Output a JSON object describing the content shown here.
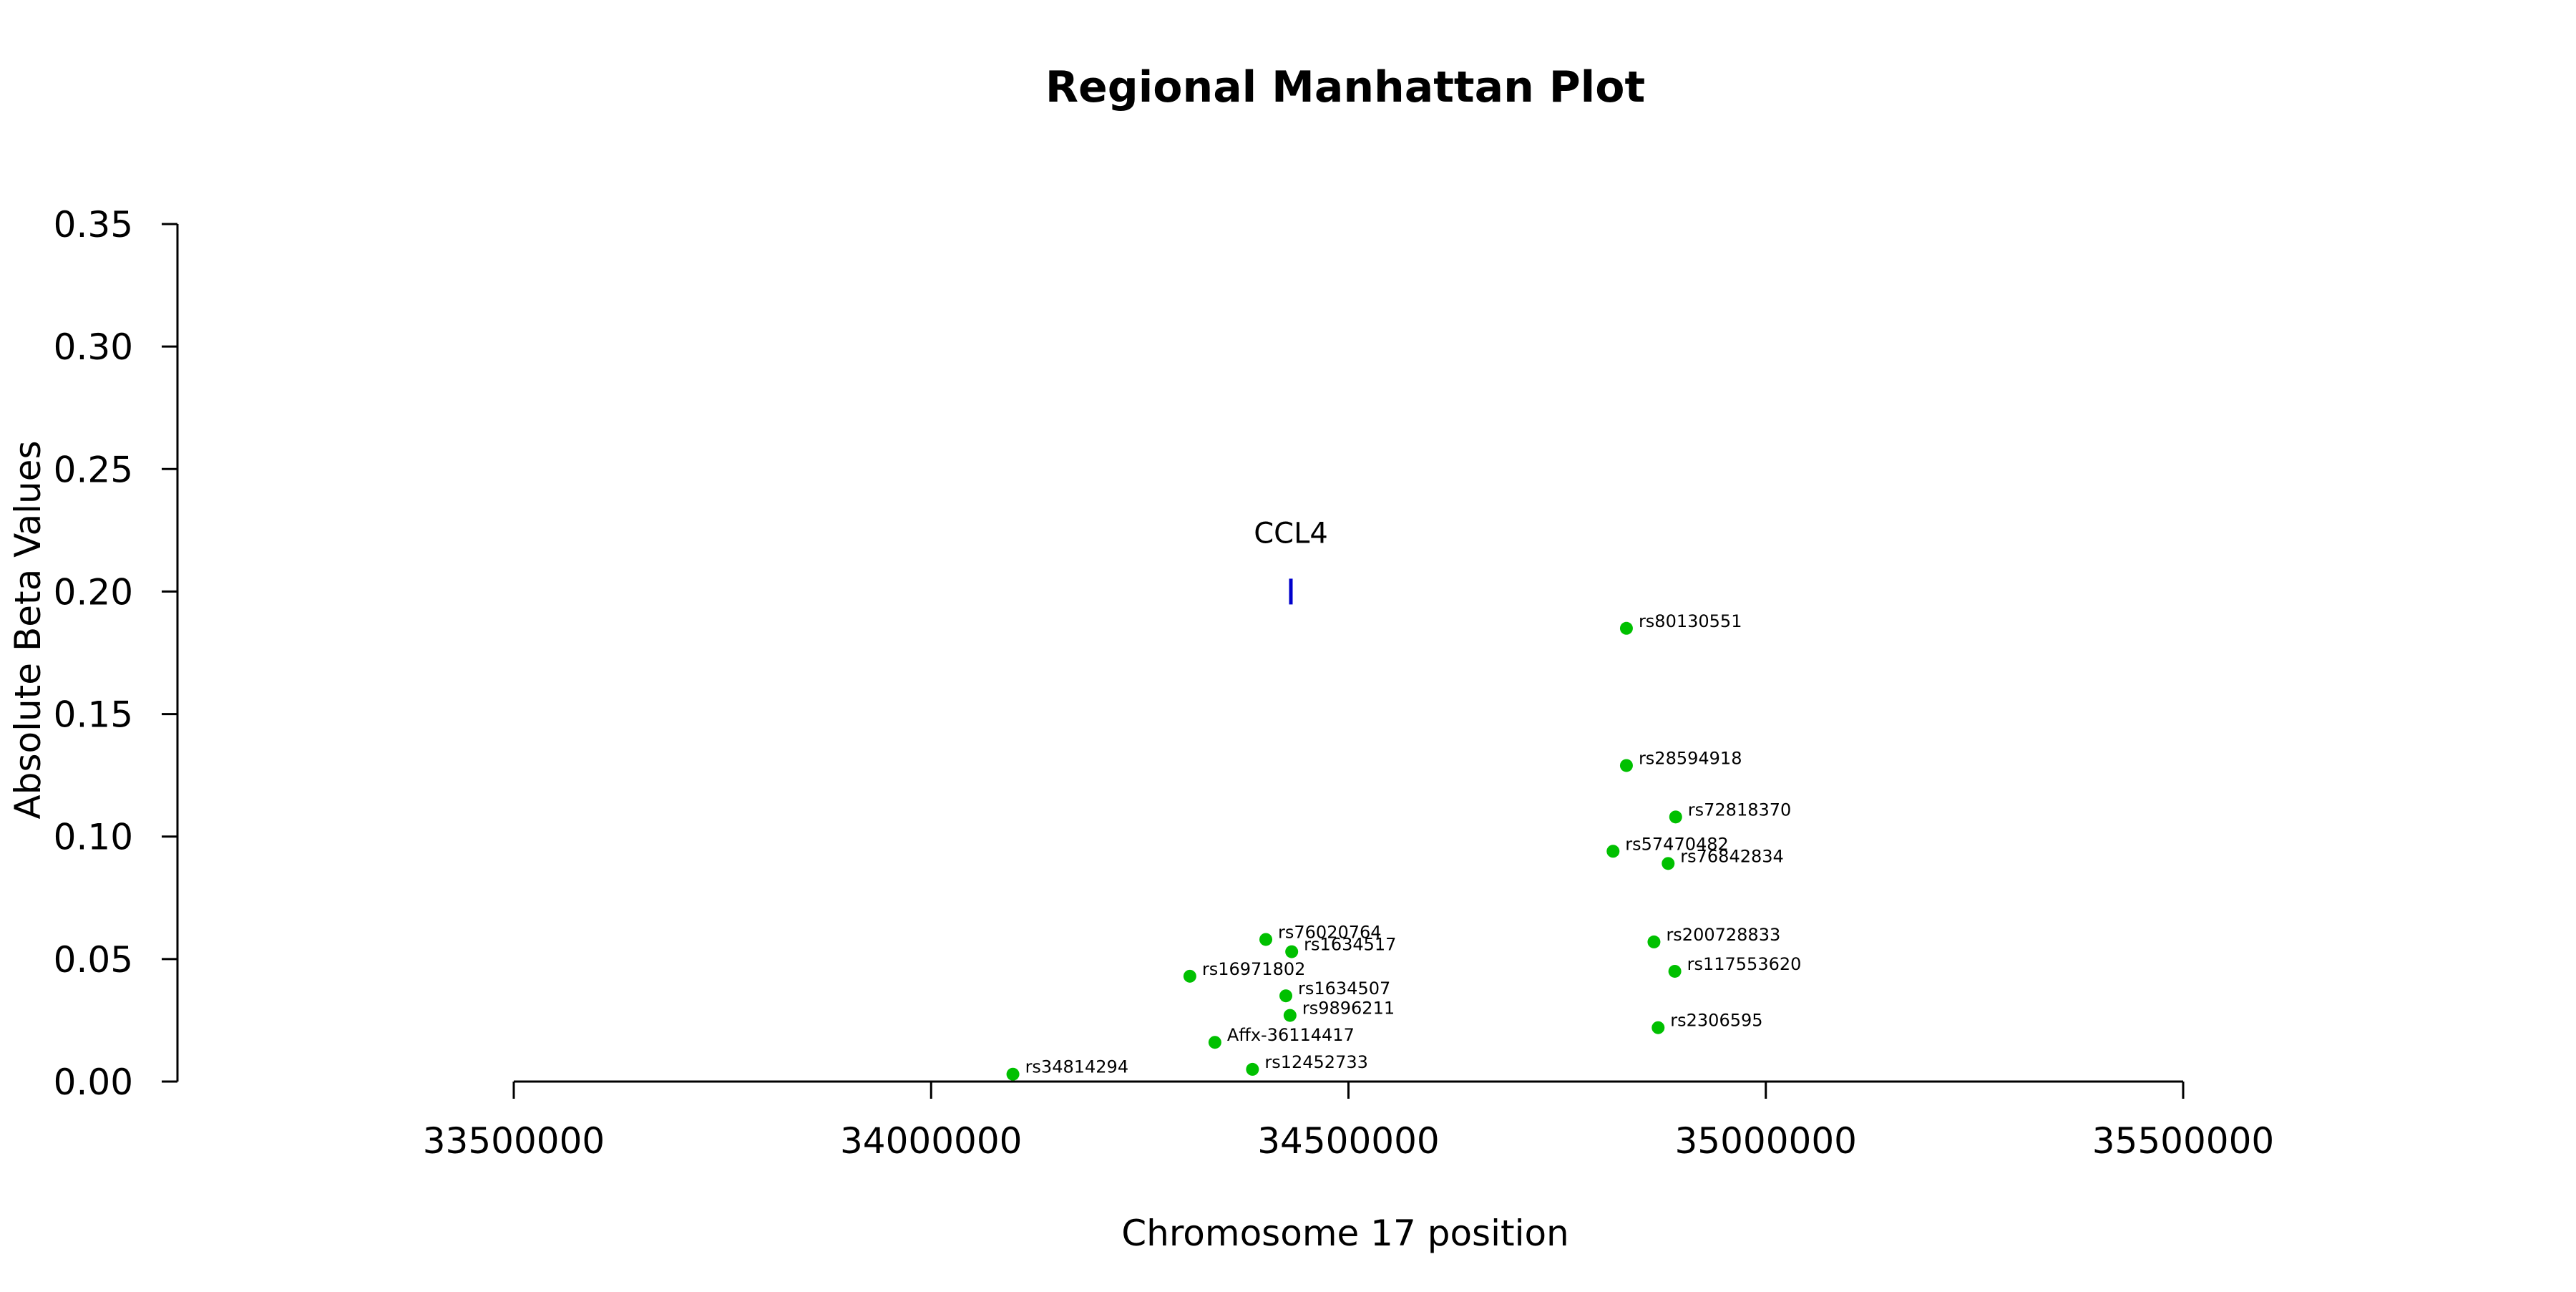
{
  "chart_data": {
    "type": "scatter",
    "title": "Regional Manhattan Plot",
    "xlabel": "Chromosome 17 position",
    "ylabel": "Absolute Beta Values",
    "xlim": [
      33500000,
      35500000
    ],
    "ylim": [
      0,
      0.35
    ],
    "x_ticks": [
      33500000,
      34000000,
      34500000,
      35000000,
      35500000
    ],
    "y_ticks": [
      0.0,
      0.05,
      0.1,
      0.15,
      0.2,
      0.25,
      0.3,
      0.35
    ],
    "x_tick_labels": [
      "33500000",
      "34000000",
      "34500000",
      "35000000",
      "35500000"
    ],
    "y_tick_labels": [
      "0.00",
      "0.05",
      "0.10",
      "0.15",
      "0.20",
      "0.25",
      "0.30",
      "0.35"
    ],
    "grid": false,
    "point_color": "#00c000",
    "gene_color": "#0000cc",
    "gene_marker": {
      "label": "CCL4",
      "x": 34431000,
      "y": 0.2
    },
    "points": [
      {
        "label": "rs80130551",
        "x": 34833000,
        "y": 0.185
      },
      {
        "label": "rs28594918",
        "x": 34833000,
        "y": 0.129
      },
      {
        "label": "rs72818370",
        "x": 34892000,
        "y": 0.108
      },
      {
        "label": "rs57470482",
        "x": 34817000,
        "y": 0.094
      },
      {
        "label": "rs76842834",
        "x": 34883000,
        "y": 0.089
      },
      {
        "label": "rs76020764",
        "x": 34401000,
        "y": 0.058
      },
      {
        "label": "rs1634517",
        "x": 34432000,
        "y": 0.053
      },
      {
        "label": "rs16971802",
        "x": 34310000,
        "y": 0.043
      },
      {
        "label": "rs1634507",
        "x": 34425000,
        "y": 0.035
      },
      {
        "label": "rs9896211",
        "x": 34430000,
        "y": 0.027
      },
      {
        "label": "Affx-36114417",
        "x": 34340000,
        "y": 0.016
      },
      {
        "label": "rs12452733",
        "x": 34385000,
        "y": 0.005
      },
      {
        "label": "rs34814294",
        "x": 34098000,
        "y": 0.003
      },
      {
        "label": "rs200728833",
        "x": 34866000,
        "y": 0.057
      },
      {
        "label": "rs117553620",
        "x": 34891000,
        "y": 0.045
      },
      {
        "label": "rs2306595",
        "x": 34871000,
        "y": 0.022
      }
    ]
  }
}
